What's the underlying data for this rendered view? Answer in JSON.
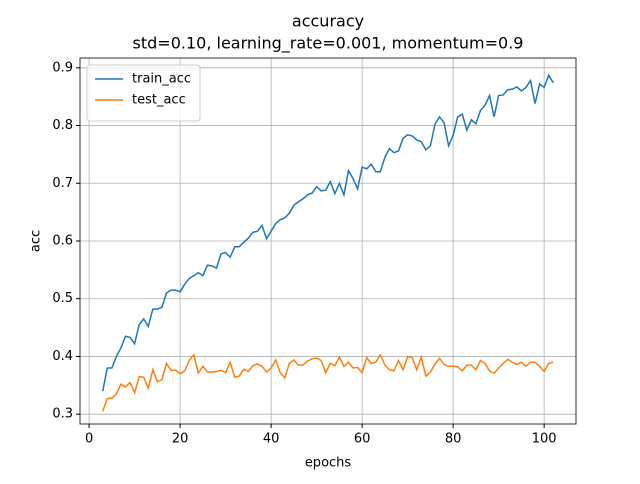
{
  "chart_data": {
    "type": "line",
    "title": "accuracy",
    "subtitle": "std=0.10, learning_rate=0.001, momentum=0.9",
    "x_label": "epochs",
    "y_label": "acc",
    "x": [
      3,
      4,
      5,
      6,
      7,
      8,
      9,
      10,
      11,
      12,
      13,
      14,
      15,
      16,
      17,
      18,
      19,
      20,
      21,
      22,
      23,
      24,
      25,
      26,
      27,
      28,
      29,
      30,
      31,
      32,
      33,
      34,
      35,
      36,
      37,
      38,
      39,
      40,
      41,
      42,
      43,
      44,
      45,
      46,
      47,
      48,
      49,
      50,
      51,
      52,
      53,
      54,
      55,
      56,
      57,
      58,
      59,
      60,
      61,
      62,
      63,
      64,
      65,
      66,
      67,
      68,
      69,
      70,
      71,
      72,
      73,
      74,
      75,
      76,
      77,
      78,
      79,
      80,
      81,
      82,
      83,
      84,
      85,
      86,
      87,
      88,
      89,
      90,
      91,
      92,
      93,
      94,
      95,
      96,
      97,
      98,
      99,
      100,
      101,
      102
    ],
    "series": [
      {
        "name": "train_acc",
        "color": "#1f77b4",
        "values": [
          0.34,
          0.38,
          0.38,
          0.4,
          0.415,
          0.435,
          0.433,
          0.422,
          0.455,
          0.465,
          0.452,
          0.482,
          0.482,
          0.485,
          0.51,
          0.515,
          0.515,
          0.512,
          0.525,
          0.535,
          0.54,
          0.545,
          0.54,
          0.558,
          0.557,
          0.553,
          0.578,
          0.58,
          0.572,
          0.59,
          0.59,
          0.598,
          0.605,
          0.615,
          0.617,
          0.627,
          0.604,
          0.617,
          0.63,
          0.637,
          0.64,
          0.648,
          0.662,
          0.668,
          0.673,
          0.68,
          0.683,
          0.694,
          0.687,
          0.688,
          0.703,
          0.682,
          0.7,
          0.68,
          0.722,
          0.708,
          0.69,
          0.728,
          0.725,
          0.733,
          0.72,
          0.72,
          0.745,
          0.76,
          0.753,
          0.756,
          0.778,
          0.784,
          0.782,
          0.775,
          0.772,
          0.758,
          0.765,
          0.802,
          0.815,
          0.805,
          0.765,
          0.783,
          0.815,
          0.82,
          0.792,
          0.81,
          0.803,
          0.826,
          0.835,
          0.852,
          0.815,
          0.852,
          0.853,
          0.862,
          0.863,
          0.867,
          0.86,
          0.866,
          0.878,
          0.838,
          0.872,
          0.866,
          0.887,
          0.874
        ]
      },
      {
        "name": "test_acc",
        "color": "#ff7f0e",
        "values": [
          0.305,
          0.327,
          0.328,
          0.335,
          0.352,
          0.347,
          0.355,
          0.337,
          0.365,
          0.364,
          0.345,
          0.377,
          0.356,
          0.36,
          0.388,
          0.376,
          0.376,
          0.37,
          0.375,
          0.393,
          0.403,
          0.371,
          0.383,
          0.373,
          0.373,
          0.374,
          0.376,
          0.372,
          0.39,
          0.364,
          0.366,
          0.378,
          0.374,
          0.384,
          0.387,
          0.383,
          0.373,
          0.38,
          0.394,
          0.372,
          0.363,
          0.388,
          0.394,
          0.385,
          0.385,
          0.392,
          0.396,
          0.397,
          0.393,
          0.372,
          0.388,
          0.384,
          0.399,
          0.383,
          0.39,
          0.38,
          0.381,
          0.372,
          0.398,
          0.388,
          0.39,
          0.403,
          0.385,
          0.377,
          0.375,
          0.393,
          0.377,
          0.4,
          0.398,
          0.377,
          0.399,
          0.366,
          0.373,
          0.387,
          0.397,
          0.386,
          0.383,
          0.383,
          0.382,
          0.375,
          0.385,
          0.385,
          0.377,
          0.393,
          0.388,
          0.375,
          0.371,
          0.38,
          0.388,
          0.395,
          0.39,
          0.386,
          0.39,
          0.383,
          0.39,
          0.39,
          0.383,
          0.374,
          0.388,
          0.39
        ]
      }
    ],
    "xlim": [
      -2,
      107
    ],
    "ylim": [
      0.283,
      0.917
    ],
    "xticks": [
      0,
      20,
      40,
      60,
      80,
      100
    ],
    "yticks": [
      0.3,
      0.4,
      0.5,
      0.6,
      0.7,
      0.8,
      0.9
    ],
    "grid": true,
    "legend": "upper left"
  }
}
